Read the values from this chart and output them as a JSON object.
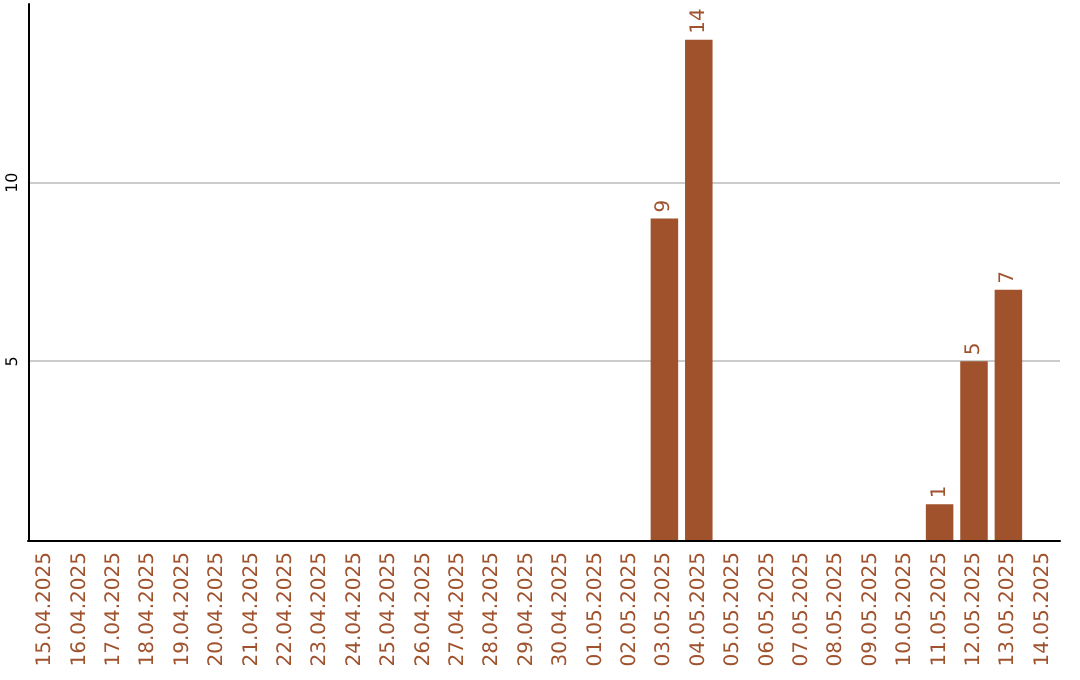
{
  "chart_data": {
    "type": "bar",
    "categories": [
      "15.04.2025",
      "16.04.2025",
      "17.04.2025",
      "18.04.2025",
      "19.04.2025",
      "20.04.2025",
      "21.04.2025",
      "22.04.2025",
      "23.04.2025",
      "24.04.2025",
      "25.04.2025",
      "26.04.2025",
      "27.04.2025",
      "28.04.2025",
      "29.04.2025",
      "30.04.2025",
      "01.05.2025",
      "02.05.2025",
      "03.05.2025",
      "04.05.2025",
      "05.05.2025",
      "06.05.2025",
      "07.05.2025",
      "08.05.2025",
      "09.05.2025",
      "10.05.2025",
      "11.05.2025",
      "12.05.2025",
      "13.05.2025",
      "14.05.2025"
    ],
    "values": [
      0,
      0,
      0,
      0,
      0,
      0,
      0,
      0,
      0,
      0,
      0,
      0,
      0,
      0,
      0,
      0,
      0,
      0,
      9,
      14,
      0,
      0,
      0,
      0,
      0,
      0,
      1,
      5,
      7,
      0
    ],
    "value_labels": [
      null,
      null,
      null,
      null,
      null,
      null,
      null,
      null,
      null,
      null,
      null,
      null,
      null,
      null,
      null,
      null,
      null,
      null,
      "9",
      "14",
      null,
      null,
      null,
      null,
      null,
      null,
      "1",
      "5",
      "7",
      null
    ],
    "color": "#a0522d",
    "ylim": [
      0,
      15
    ],
    "yticks": [
      5,
      10
    ],
    "grid": "y"
  }
}
